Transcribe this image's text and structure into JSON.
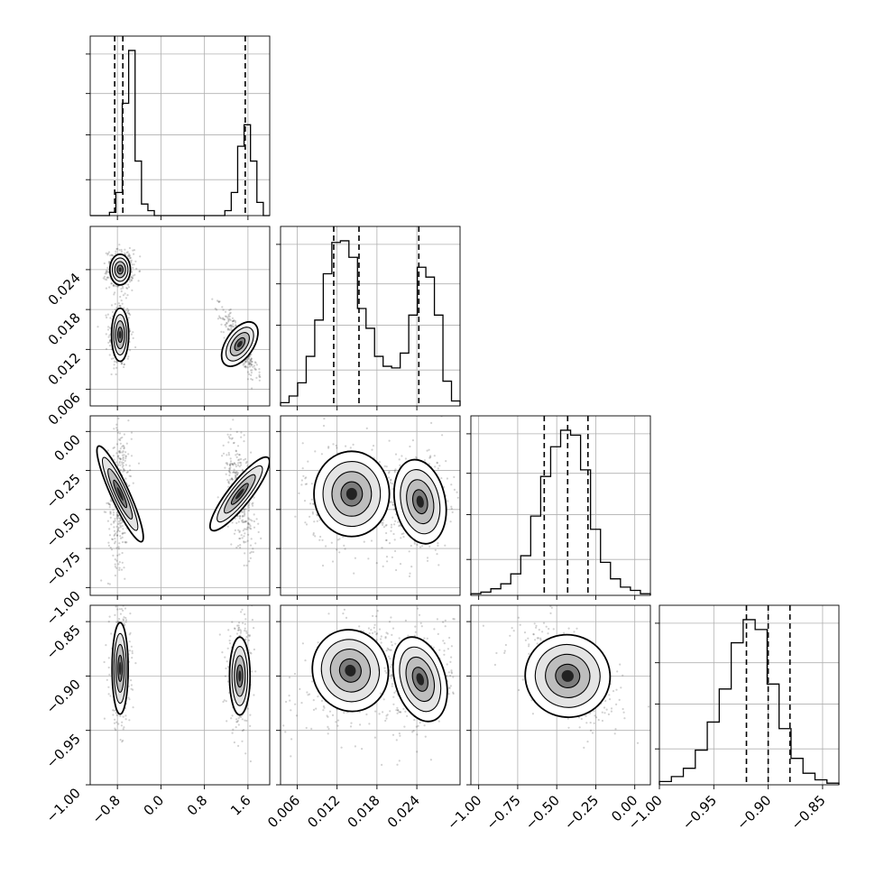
{
  "chart_data": {
    "type": "corner",
    "grid": true,
    "parameters": [
      {
        "range": [
          -1.3,
          2.0
        ],
        "ticks": [
          "−0.8",
          "0.0",
          "0.8",
          "1.6"
        ],
        "tick_values": [
          -0.8,
          0.0,
          0.8,
          1.6
        ],
        "quantiles": [
          -0.85,
          -0.7,
          1.55
        ],
        "hist_rel": [
          0,
          0,
          0,
          0.02,
          0.14,
          0.68,
          1.0,
          0.33,
          0.07,
          0.03,
          0.0,
          0,
          0,
          0,
          0,
          0,
          0,
          0,
          0,
          0.0,
          0.0,
          0.03,
          0.14,
          0.42,
          0.55,
          0.33,
          0.08,
          0.0
        ]
      },
      {
        "range": [
          0.0035,
          0.0305
        ],
        "ticks": [
          "0.006",
          "0.012",
          "0.018",
          "0.024"
        ],
        "tick_values": [
          0.006,
          0.012,
          0.018,
          0.024
        ],
        "quantiles": [
          0.0115,
          0.0153,
          0.0243
        ],
        "hist_rel": [
          0.02,
          0.06,
          0.14,
          0.3,
          0.52,
          0.8,
          0.99,
          1.0,
          0.9,
          0.59,
          0.47,
          0.3,
          0.24,
          0.23,
          0.32,
          0.55,
          0.84,
          0.78,
          0.55,
          0.15,
          0.03
        ]
      },
      {
        "range": [
          -1.05,
          0.1
        ],
        "ticks": [
          "−1.00",
          "−0.75",
          "−0.50",
          "−0.25",
          "0.00"
        ],
        "tick_values": [
          -1.0,
          -0.75,
          -0.5,
          -0.25,
          0.0
        ],
        "quantiles": [
          -0.58,
          -0.43,
          -0.3
        ],
        "hist_rel": [
          0.01,
          0.02,
          0.04,
          0.07,
          0.13,
          0.24,
          0.48,
          0.72,
          0.9,
          1.0,
          0.97,
          0.76,
          0.4,
          0.2,
          0.1,
          0.05,
          0.03,
          0.01
        ]
      },
      {
        "range": [
          -1.0,
          -0.835
        ],
        "ticks": [
          "−1.00",
          "−0.95",
          "−0.90",
          "−0.85"
        ],
        "tick_values": [
          -1.0,
          -0.95,
          -0.9,
          -0.85
        ],
        "quantiles": [
          -0.92,
          -0.9,
          -0.88
        ],
        "hist_rel": [
          0.02,
          0.05,
          0.1,
          0.21,
          0.38,
          0.58,
          0.86,
          1.0,
          0.94,
          0.61,
          0.34,
          0.16,
          0.07,
          0.03,
          0.01
        ]
      }
    ],
    "modes": [
      [
        -0.75,
        0.0142,
        -0.4,
        -0.894
      ],
      [
        -0.75,
        0.024,
        -0.5,
        -0.9
      ],
      [
        1.45,
        0.0128,
        -0.4,
        -0.9
      ]
    ]
  }
}
